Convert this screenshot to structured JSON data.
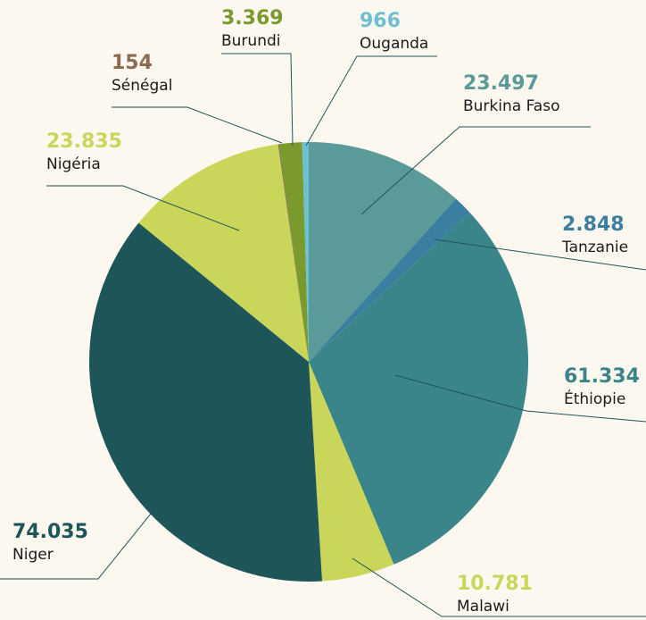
{
  "chart_data": {
    "type": "pie",
    "categories": [
      "Burkina Faso",
      "Tanzanie",
      "Éthiopie",
      "Malawi",
      "Niger",
      "Nigéria",
      "Sénégal",
      "Burundi",
      "Ouganda"
    ],
    "values": [
      23497,
      2848,
      61334,
      10781,
      74035,
      23835,
      154,
      3369,
      966
    ],
    "value_labels": [
      "23.497",
      "2.848",
      "61.334",
      "10.781",
      "74.035",
      "23.835",
      "154",
      "3.369",
      "966"
    ],
    "colors": [
      "#5a9a98",
      "#3a7fa0",
      "#3a8589",
      "#c9d65a",
      "#1d5558",
      "#c9d65a",
      "#8b6a4f",
      "#7a9a2e",
      "#6cc0d0"
    ]
  }
}
